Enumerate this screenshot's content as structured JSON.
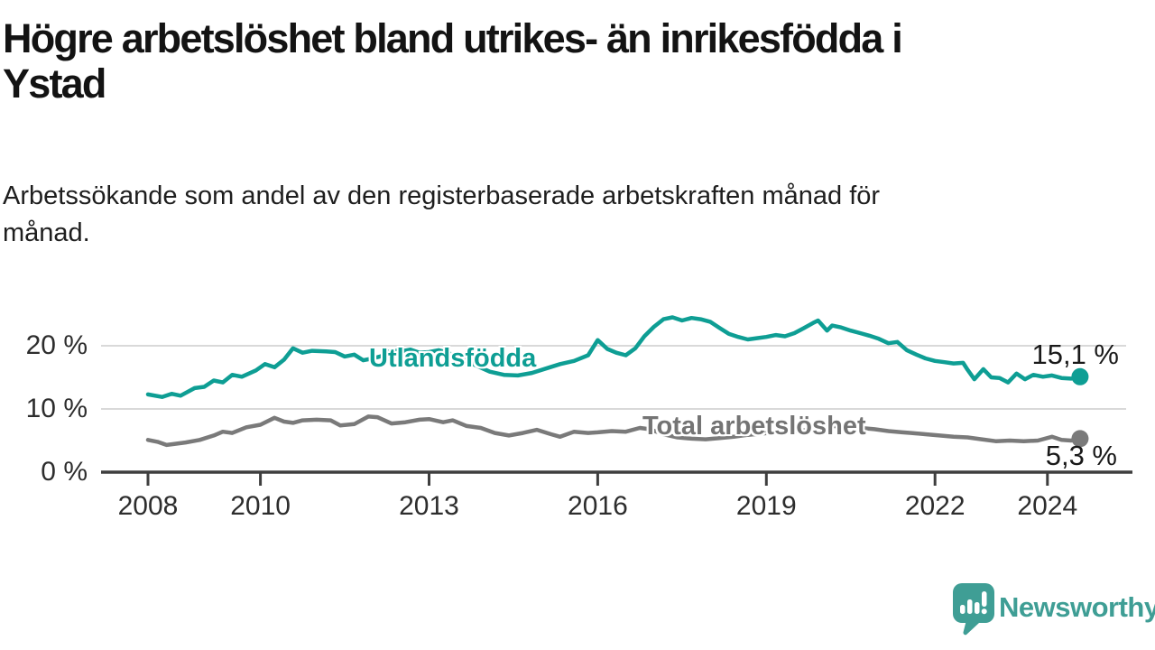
{
  "title_lines": [
    "Högre arbetslöshet bland utrikes- än inrikesfödda i",
    "Ystad"
  ],
  "subtitle_lines": [
    "Arbetssökande som andel av den registerbaserade arbetskraften månad för",
    "månad."
  ],
  "colors": {
    "teal": "#0e9e94",
    "gray": "#7a7a7a",
    "label_gray": "#747474",
    "axis": "#3e3e3e",
    "grid": "#d9d9d9",
    "text": "#1a1a1a",
    "logo_teal": "#3f9e95"
  },
  "logo": {
    "text": "Newsworthy",
    "icon": "speech-bubble-bar-chart"
  },
  "chart_data": {
    "type": "line",
    "title": "Högre arbetslöshet bland utrikes- än inrikesfödda i Ystad",
    "xlabel": "",
    "ylabel": "Arbetssökande som andel av den registerbaserade arbetskraften",
    "ylim": [
      0,
      27
    ],
    "xlim": [
      2007.2,
      2025.5
    ],
    "grid": "horizontal",
    "legend_position": "inline-labels",
    "x_ticks": [
      {
        "value": 2008,
        "label": "2008"
      },
      {
        "value": 2010,
        "label": "2010"
      },
      {
        "value": 2013,
        "label": "2013"
      },
      {
        "value": 2016,
        "label": "2016"
      },
      {
        "value": 2019,
        "label": "2019"
      },
      {
        "value": 2022,
        "label": "2022"
      },
      {
        "value": 2024,
        "label": "2024"
      }
    ],
    "y_ticks": [
      {
        "value": 0,
        "label": "0 %"
      },
      {
        "value": 10,
        "label": "10 %"
      },
      {
        "value": 20,
        "label": "20 %"
      }
    ],
    "series": [
      {
        "name": "Utlandsfödda",
        "color": "#0e9e94",
        "end_label": "15,1 %",
        "end_value": 15.1,
        "x": [
          2008.0,
          2008.25,
          2008.42,
          2008.58,
          2008.83,
          2009.0,
          2009.17,
          2009.33,
          2009.5,
          2009.67,
          2009.92,
          2010.08,
          2010.25,
          2010.42,
          2010.58,
          2010.75,
          2010.92,
          2011.17,
          2011.33,
          2011.5,
          2011.67,
          2011.83,
          2012.0,
          2012.17,
          2012.33,
          2012.5,
          2012.67,
          2012.83,
          2013.0,
          2013.17,
          2013.33,
          2013.58,
          2013.83,
          2014.08,
          2014.33,
          2014.58,
          2014.83,
          2015.08,
          2015.33,
          2015.58,
          2015.83,
          2016.0,
          2016.17,
          2016.33,
          2016.5,
          2016.67,
          2016.83,
          2017.0,
          2017.17,
          2017.33,
          2017.5,
          2017.67,
          2017.83,
          2018.0,
          2018.17,
          2018.33,
          2018.5,
          2018.67,
          2018.83,
          2019.0,
          2019.17,
          2019.33,
          2019.5,
          2019.67,
          2019.83,
          2019.92,
          2020.08,
          2020.17,
          2020.33,
          2020.5,
          2020.67,
          2020.83,
          2021.0,
          2021.17,
          2021.33,
          2021.5,
          2021.67,
          2021.83,
          2022.0,
          2022.17,
          2022.33,
          2022.5,
          2022.58,
          2022.7,
          2022.86,
          2023.0,
          2023.15,
          2023.3,
          2023.45,
          2023.6,
          2023.75,
          2023.92,
          2024.08,
          2024.25,
          2024.42,
          2024.58
        ],
        "values": [
          12.3,
          11.9,
          12.4,
          12.1,
          13.3,
          13.5,
          14.5,
          14.2,
          15.4,
          15.1,
          16.1,
          17.1,
          16.6,
          17.8,
          19.6,
          18.9,
          19.2,
          19.1,
          19.0,
          18.3,
          18.6,
          17.7,
          18.0,
          18.4,
          19.3,
          19.1,
          19.4,
          18.9,
          19.0,
          19.3,
          18.9,
          18.0,
          16.9,
          15.9,
          15.4,
          15.3,
          15.7,
          16.4,
          17.1,
          17.6,
          18.5,
          20.9,
          19.5,
          18.9,
          18.5,
          19.6,
          21.5,
          23.0,
          24.2,
          24.5,
          24.0,
          24.4,
          24.2,
          23.8,
          22.8,
          21.9,
          21.4,
          21.0,
          21.2,
          21.4,
          21.7,
          21.5,
          22.0,
          22.8,
          23.6,
          24.0,
          22.4,
          23.2,
          22.9,
          22.4,
          22.0,
          21.6,
          21.1,
          20.4,
          20.6,
          19.3,
          18.6,
          18.0,
          17.6,
          17.4,
          17.2,
          17.3,
          16.2,
          14.7,
          16.3,
          15.0,
          14.9,
          14.2,
          15.6,
          14.7,
          15.4,
          15.1,
          15.3,
          14.9,
          14.8,
          15.1
        ]
      },
      {
        "name": "Total arbetslöshet",
        "color": "#7a7a7a",
        "end_label": "5,3 %",
        "end_value": 5.3,
        "x": [
          2008.0,
          2008.17,
          2008.33,
          2008.5,
          2008.67,
          2008.92,
          2009.17,
          2009.33,
          2009.5,
          2009.75,
          2010.0,
          2010.25,
          2010.42,
          2010.58,
          2010.75,
          2011.0,
          2011.25,
          2011.42,
          2011.67,
          2011.92,
          2012.08,
          2012.33,
          2012.58,
          2012.83,
          2013.0,
          2013.25,
          2013.42,
          2013.67,
          2013.92,
          2014.17,
          2014.42,
          2014.67,
          2014.92,
          2015.17,
          2015.33,
          2015.58,
          2015.83,
          2016.0,
          2016.25,
          2016.5,
          2016.75,
          2016.92,
          2017.17,
          2017.42,
          2017.67,
          2017.92,
          2018.17,
          2018.42,
          2018.67,
          2018.92,
          2019.17,
          2019.42,
          2019.67,
          2019.92,
          2020.17,
          2020.42,
          2020.67,
          2020.92,
          2021.17,
          2021.42,
          2021.58,
          2021.83,
          2022.08,
          2022.33,
          2022.58,
          2022.83,
          2023.08,
          2023.33,
          2023.58,
          2023.83,
          2024.08,
          2024.25,
          2024.42,
          2024.58
        ],
        "values": [
          5.1,
          4.8,
          4.3,
          4.5,
          4.7,
          5.1,
          5.8,
          6.4,
          6.2,
          7.1,
          7.5,
          8.6,
          8.0,
          7.8,
          8.2,
          8.3,
          8.2,
          7.4,
          7.6,
          8.8,
          8.7,
          7.7,
          7.9,
          8.3,
          8.4,
          7.9,
          8.2,
          7.3,
          7.0,
          6.2,
          5.8,
          6.2,
          6.7,
          6.0,
          5.6,
          6.4,
          6.2,
          6.3,
          6.5,
          6.4,
          7.0,
          6.8,
          6.0,
          5.5,
          5.3,
          5.2,
          5.4,
          5.6,
          5.9,
          6.1,
          6.3,
          6.4,
          6.6,
          6.8,
          7.3,
          7.2,
          7.0,
          6.8,
          6.5,
          6.3,
          6.2,
          6.0,
          5.8,
          5.6,
          5.5,
          5.2,
          4.9,
          5.0,
          4.9,
          5.0,
          5.6,
          5.1,
          5.0,
          5.3
        ]
      }
    ]
  }
}
